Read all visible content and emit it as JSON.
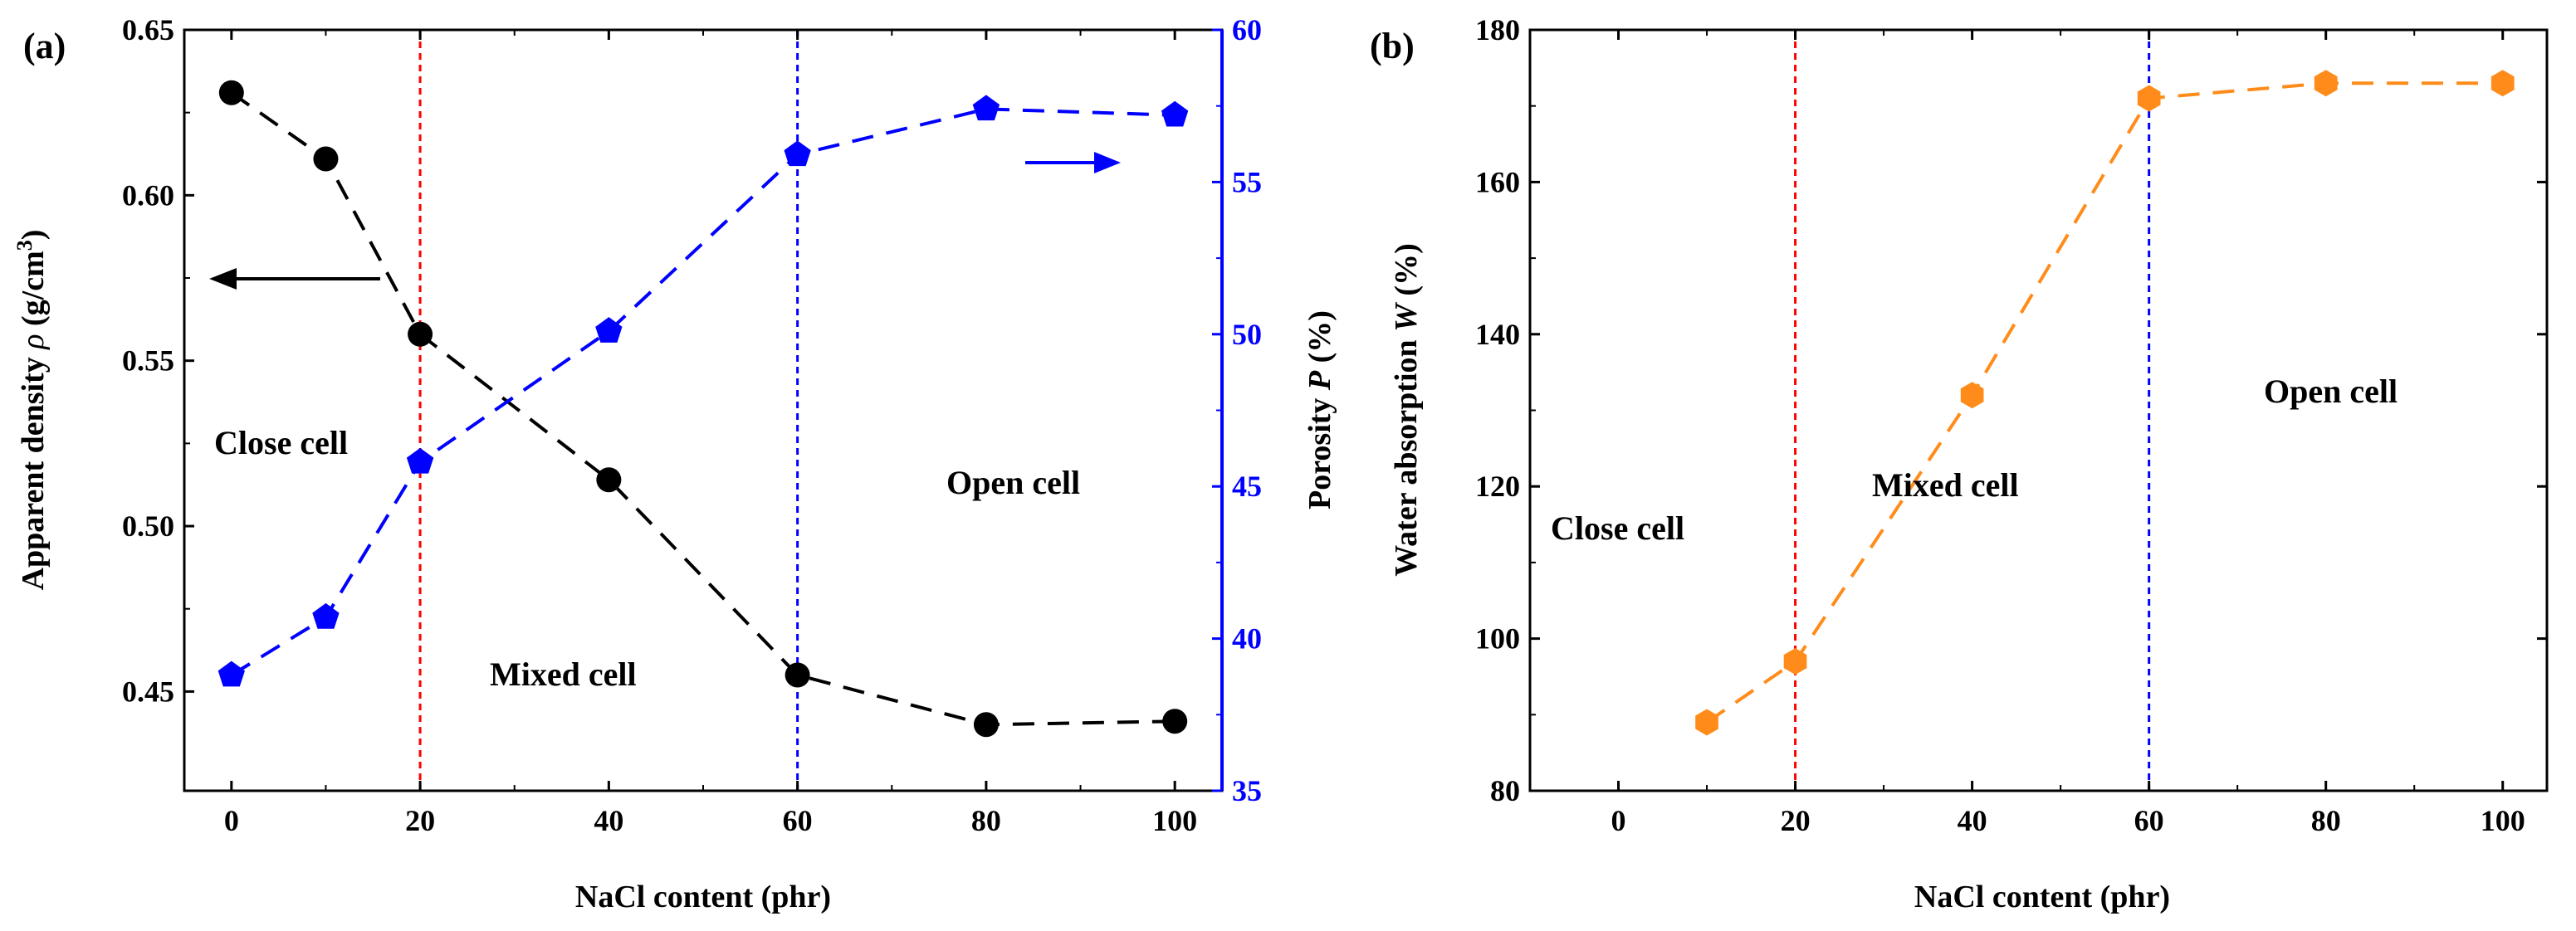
{
  "colors": {
    "density": "#000000",
    "porosity": "#0000ff",
    "water": "#ff8c1a",
    "red_line": "#ff0000",
    "blue_line": "#0000ff"
  },
  "chart_data": [
    {
      "panel": "(a)",
      "type": "line",
      "xlabel": "NaCl content (phr)",
      "xlim": [
        -5,
        105
      ],
      "xticks": [
        0,
        20,
        40,
        60,
        80,
        100
      ],
      "series": [
        {
          "name": "Apparent density",
          "axis": "left",
          "marker": "circle",
          "x": [
            0,
            10,
            20,
            40,
            60,
            80,
            100
          ],
          "values": [
            0.631,
            0.611,
            0.558,
            0.514,
            0.455,
            0.44,
            0.441
          ]
        },
        {
          "name": "Porosity",
          "axis": "right",
          "marker": "pentagon",
          "x": [
            0,
            10,
            20,
            40,
            60,
            80,
            100
          ],
          "values": [
            38.8,
            40.7,
            45.8,
            50.1,
            55.9,
            57.4,
            57.2
          ]
        }
      ],
      "left_axis": {
        "label_prefix": "Apparent density ",
        "label_symbol": "ρ",
        "label_unit": " (g/cm",
        "label_sup": "3",
        "label_close": ")",
        "ylim": [
          0.42,
          0.65
        ],
        "ticks": [
          "0.45",
          "0.50",
          "0.55",
          "0.60",
          "0.65"
        ]
      },
      "right_axis": {
        "label_prefix": "Porosity ",
        "label_symbol": "P",
        "label_unit": " (%)",
        "ylim": [
          35,
          60
        ],
        "ticks": [
          "35",
          "40",
          "45",
          "50",
          "55",
          "60"
        ]
      },
      "vlines": [
        20,
        60
      ],
      "regions": [
        "Close cell",
        "Mixed cell",
        "Open cell"
      ]
    },
    {
      "panel": "(b)",
      "type": "line",
      "xlabel": "NaCl content (phr)",
      "xlim": [
        -10,
        105
      ],
      "xticks": [
        0,
        20,
        40,
        60,
        80,
        100
      ],
      "series": [
        {
          "name": "Water absorption",
          "marker": "hexagon",
          "x": [
            10,
            20,
            40,
            60,
            80,
            100
          ],
          "values": [
            89,
            97,
            132,
            171,
            173,
            173
          ]
        }
      ],
      "y_axis": {
        "label_prefix": "Water absorption ",
        "label_symbol": "W",
        "label_unit": " (%)",
        "ylim": [
          80,
          180
        ],
        "ticks": [
          "80",
          "100",
          "120",
          "140",
          "160",
          "180"
        ]
      },
      "vlines": [
        20,
        60
      ],
      "regions": [
        "Close cell",
        "Mixed cell",
        "Open cell"
      ]
    }
  ]
}
